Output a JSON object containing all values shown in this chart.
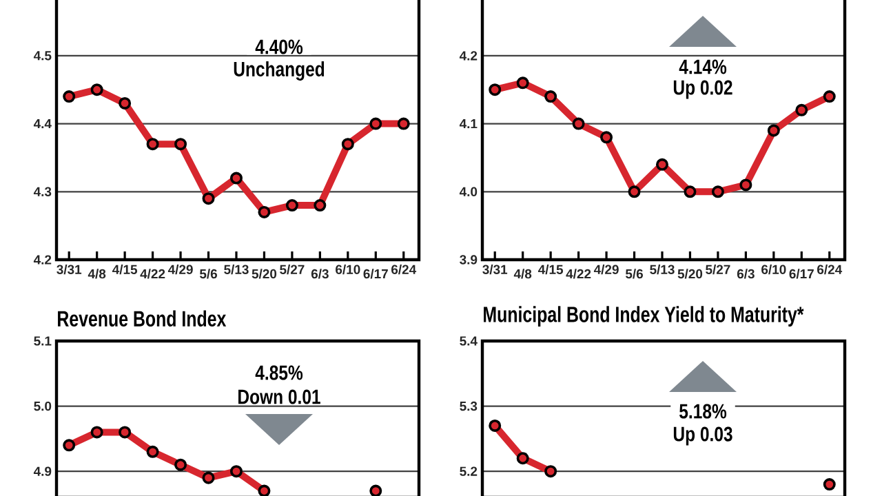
{
  "chart_data": [
    {
      "type": "line",
      "categories": [
        "3/31",
        "4/8",
        "4/15",
        "4/22",
        "4/29",
        "5/6",
        "5/13",
        "5/20",
        "5/27",
        "6/3",
        "6/10",
        "6/17",
        "6/24"
      ],
      "series": [
        {
          "color": "#d7262e",
          "values": [
            4.44,
            4.45,
            4.43,
            4.37,
            4.37,
            4.29,
            4.32,
            4.27,
            4.28,
            4.28,
            4.37,
            4.4,
            4.4
          ]
        }
      ],
      "ylim": [
        4.2,
        4.59
      ],
      "yticks": [
        4.2,
        4.3,
        4.4,
        4.5
      ],
      "grid": "y",
      "marker": "circle",
      "line_style": "solid",
      "annotations": [
        "4.40%",
        "Unchanged"
      ]
    },
    {
      "type": "line",
      "categories": [
        "3/31",
        "4/8",
        "4/15",
        "4/22",
        "4/29",
        "5/6",
        "5/13",
        "5/20",
        "5/27",
        "6/3",
        "6/10",
        "6/17",
        "6/24"
      ],
      "series": [
        {
          "color": "#d7262e",
          "values": [
            4.15,
            4.16,
            4.14,
            4.1,
            4.08,
            4.0,
            4.04,
            4.0,
            4.0,
            4.01,
            4.09,
            4.12,
            4.14
          ]
        }
      ],
      "ylim": [
        3.9,
        4.29
      ],
      "yticks": [
        3.9,
        {
          "value": 4.0,
          "label": "4.0"
        },
        4.1,
        4.2
      ],
      "grid": "y",
      "marker": "circle",
      "line_style": "solid",
      "annotations": [
        "4.14%",
        "Up 0.02"
      ]
    },
    {
      "type": "line",
      "title": "Revenue Bond Index",
      "categories": [
        null,
        null,
        null,
        null,
        null,
        null,
        null,
        null,
        null,
        null,
        null,
        null,
        null
      ],
      "series": [
        {
          "color": "#d7262e",
          "values": [
            4.94,
            4.96,
            4.96,
            4.93,
            4.91,
            4.89,
            4.9,
            4.87,
            null,
            null,
            null,
            4.87,
            null
          ]
        }
      ],
      "ylim": [
        4.86,
        5.1
      ],
      "yticks": [
        4.9,
        {
          "value": 5.0,
          "label": "5.0"
        },
        5.1
      ],
      "grid": "y",
      "marker": "circle",
      "line_style": "solid",
      "tick_labels": "y",
      "annotations": [
        "4.85%",
        "Down 0.01"
      ]
    },
    {
      "type": "line",
      "title": "Municipal Bond Index Yield to Maturity*",
      "categories": [
        null,
        null,
        null,
        null,
        null,
        null,
        null,
        null,
        null,
        null,
        null,
        null,
        null
      ],
      "series": [
        {
          "color": "#d7262e",
          "values": [
            5.27,
            5.22,
            5.2,
            null,
            null,
            null,
            null,
            null,
            null,
            null,
            null,
            null,
            5.18
          ]
        }
      ],
      "ylim": [
        5.16,
        5.4
      ],
      "yticks": [
        5.2,
        5.3,
        5.4
      ],
      "grid": "y",
      "marker": "circle",
      "line_style": "solid",
      "tick_labels": "y",
      "annotations": [
        "5.18%",
        "Up 0.03"
      ]
    }
  ]
}
